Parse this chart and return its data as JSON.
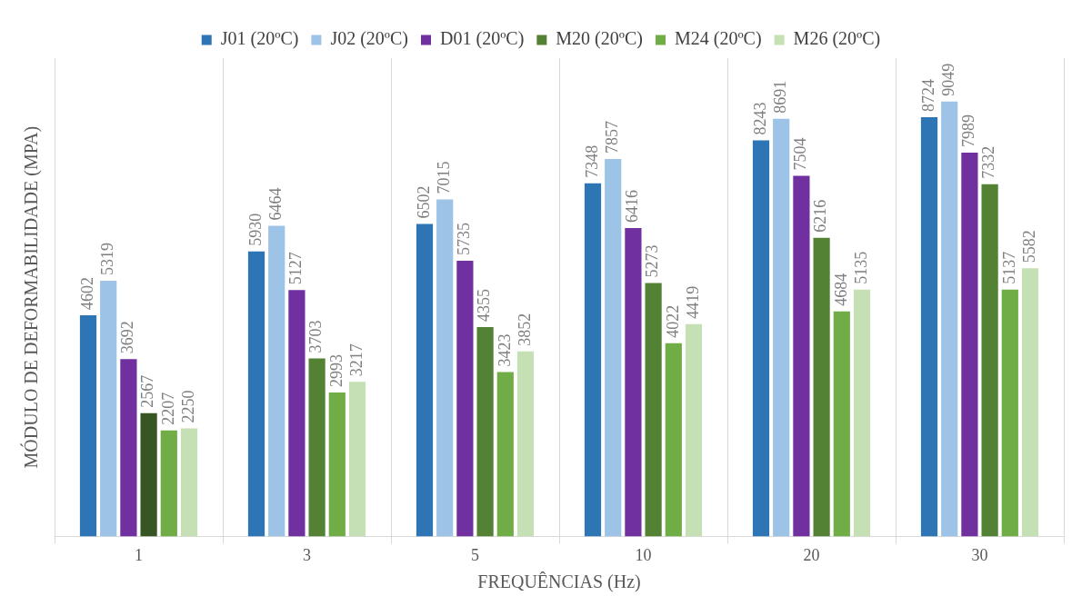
{
  "chart_data": {
    "type": "bar",
    "xlabel": "FREQUÊNCIAS (Hz)",
    "ylabel": "MÓDULO DE DEFORMABILIDADE (MPA)",
    "categories": [
      "1",
      "3",
      "5",
      "10",
      "20",
      "30"
    ],
    "series": [
      {
        "name": "J01 (20ºC)",
        "color": "#2e75b6",
        "values": [
          4602,
          5930,
          6502,
          7348,
          8243,
          8724
        ]
      },
      {
        "name": "J02 (20ºC)",
        "color": "#9dc3e6",
        "values": [
          5319,
          6464,
          7015,
          7857,
          8691,
          9049
        ]
      },
      {
        "name": "D01 (20ºC)",
        "color": "#7030a0",
        "values": [
          3692,
          5127,
          5735,
          6416,
          7504,
          7989
        ]
      },
      {
        "name": "M20 (20ºC)",
        "color": "#548235",
        "colors": [
          "#375623",
          "#548235",
          "#548235",
          "#548235",
          "#548235",
          "#548235"
        ],
        "values": [
          2567,
          3703,
          4355,
          5273,
          6216,
          7332
        ]
      },
      {
        "name": "M24 (20ºC)",
        "color": "#70ad47",
        "values": [
          2207,
          2993,
          3423,
          4022,
          4684,
          5137
        ]
      },
      {
        "name": "M26 (20ºC)",
        "color": "#c5e0b4",
        "values": [
          2250,
          3217,
          3852,
          4419,
          5135,
          5582
        ]
      }
    ],
    "data_labels": true,
    "grid": "x",
    "legend": "top"
  }
}
